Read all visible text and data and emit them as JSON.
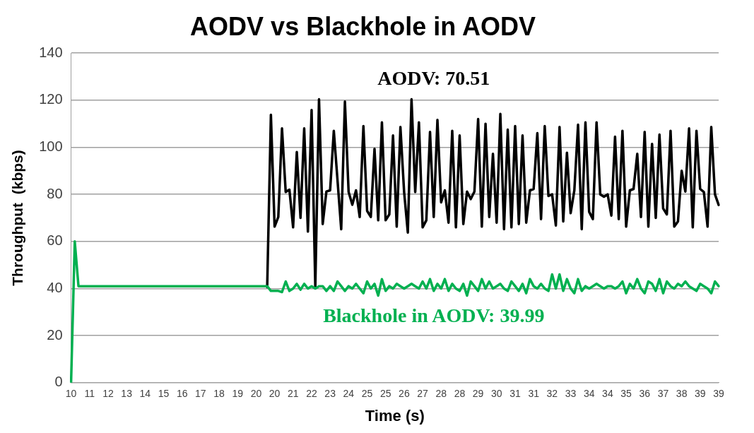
{
  "chart_data": {
    "type": "line",
    "title": "AODV vs Blackhole in AODV",
    "xlabel": "Time (s)",
    "ylabel": "Throughput  (kbps)",
    "categories": [
      "10",
      null,
      null,
      null,
      null,
      "11",
      null,
      null,
      null,
      null,
      "12",
      null,
      null,
      null,
      null,
      "13",
      null,
      null,
      null,
      null,
      "14",
      null,
      null,
      null,
      null,
      "15",
      null,
      null,
      null,
      null,
      "16",
      null,
      null,
      null,
      null,
      "17",
      null,
      null,
      null,
      null,
      "18",
      null,
      null,
      null,
      null,
      "19",
      null,
      null,
      null,
      null,
      "20",
      null,
      null,
      null,
      null,
      "20",
      null,
      null,
      null,
      null,
      "21",
      null,
      null,
      null,
      null,
      "22",
      null,
      null,
      null,
      null,
      "23",
      null,
      null,
      null,
      null,
      "24",
      null,
      null,
      null,
      null,
      "25",
      null,
      null,
      null,
      null,
      "25",
      null,
      null,
      null,
      null,
      "26",
      null,
      null,
      null,
      null,
      "27",
      null,
      null,
      null,
      null,
      "28",
      null,
      null,
      null,
      null,
      "28",
      null,
      null,
      null,
      null,
      "29",
      null,
      null,
      null,
      null,
      "30",
      null,
      null,
      null,
      null,
      "31",
      null,
      null,
      null,
      null,
      "31",
      null,
      null,
      null,
      null,
      "32",
      null,
      null,
      null,
      null,
      "33",
      null,
      null,
      null,
      null,
      "34",
      null,
      null,
      null,
      null,
      "34",
      null,
      null,
      null,
      null,
      "35",
      null,
      null,
      null,
      null,
      "36",
      null,
      null,
      null,
      null,
      "37",
      null,
      null,
      null,
      null,
      "38",
      null,
      null,
      null,
      null,
      "39",
      null,
      null,
      null,
      null,
      "39"
    ],
    "series": [
      {
        "name": "AODV: 70.51",
        "color": "#000000",
        "values": [
          null,
          null,
          null,
          null,
          null,
          null,
          null,
          null,
          null,
          null,
          null,
          null,
          null,
          null,
          null,
          null,
          null,
          null,
          null,
          null,
          null,
          null,
          null,
          null,
          null,
          null,
          null,
          null,
          null,
          null,
          null,
          null,
          null,
          null,
          null,
          null,
          null,
          null,
          null,
          null,
          null,
          null,
          null,
          null,
          null,
          null,
          null,
          null,
          null,
          null,
          null,
          null,
          null,
          40.6,
          113.8,
          66.3,
          70.4,
          108,
          81,
          82,
          66,
          98,
          70,
          108,
          64.2,
          115.8,
          40.6,
          120.4,
          67.4,
          81.2,
          81.7,
          107,
          86,
          65.2,
          119.4,
          81,
          75.6,
          81.7,
          70.4,
          109,
          73,
          70.4,
          99.3,
          69,
          110.6,
          69,
          71.5,
          105,
          66.3,
          108.6,
          81,
          63.8,
          120.4,
          81,
          110.6,
          66,
          69,
          106.5,
          70.4,
          111.6,
          76.6,
          81.7,
          68,
          107,
          66,
          105,
          67.4,
          81.2,
          78,
          81.2,
          112,
          66.3,
          110,
          70.4,
          97.2,
          68,
          114.2,
          65.2,
          107.5,
          66,
          109,
          67.4,
          105,
          68,
          81.7,
          82.3,
          106,
          69.5,
          109,
          79.3,
          80,
          66.8,
          108.6,
          68.5,
          97.7,
          72,
          81.7,
          109.6,
          65.2,
          110.6,
          72.6,
          69.5,
          110.6,
          80,
          79,
          80,
          71,
          104.5,
          69.5,
          107,
          66.3,
          81.7,
          82.3,
          97.2,
          70.4,
          106.5,
          66.3,
          101.4,
          70,
          105.4,
          74,
          71.5,
          107,
          66.3,
          68.5,
          90,
          81.2,
          108,
          66,
          107,
          82.3,
          81,
          66.3,
          108.6,
          80,
          75.5
        ]
      },
      {
        "name": "Blackhole in AODV: 39.99",
        "color": "#00b050",
        "values": [
          0,
          60,
          41,
          41,
          41,
          41,
          41,
          41,
          41,
          41,
          41,
          41,
          41,
          41,
          41,
          41,
          41,
          41,
          41,
          41,
          41,
          41,
          41,
          41,
          41,
          41,
          41,
          41,
          41,
          41,
          41,
          41,
          41,
          41,
          41,
          41,
          41,
          41,
          41,
          41,
          41,
          41,
          41,
          41,
          41,
          41,
          41,
          41,
          41,
          41,
          41,
          41,
          41,
          41,
          39,
          39,
          39,
          38.5,
          43,
          39,
          40,
          42,
          39.5,
          42,
          40,
          41,
          40,
          41,
          41,
          39,
          41,
          39,
          43,
          41,
          39,
          41,
          40,
          42,
          40,
          38,
          43,
          40,
          42,
          37,
          44,
          39,
          41,
          40,
          42,
          41,
          40,
          41,
          42,
          41,
          40,
          43,
          40,
          44,
          39,
          42,
          40,
          44,
          39,
          42,
          40,
          39,
          42,
          37,
          43,
          41,
          39,
          44,
          40,
          43,
          40,
          41,
          42,
          40,
          39,
          43,
          41,
          39,
          42,
          38,
          44,
          41,
          40,
          42,
          40,
          39,
          46,
          40,
          46,
          39,
          44,
          40,
          38,
          44,
          39,
          41,
          40,
          41,
          42,
          41,
          40,
          41,
          41,
          40,
          41,
          43,
          38,
          42,
          40,
          44,
          40,
          38,
          43,
          42,
          39,
          44,
          38,
          43,
          41,
          40,
          42,
          41,
          43,
          41,
          40,
          39,
          42,
          41,
          40,
          38,
          43,
          41
        ]
      }
    ],
    "ylim": [
      0,
      140
    ],
    "yticks": [
      0,
      20,
      40,
      60,
      80,
      100,
      120,
      140
    ],
    "grid": "y",
    "line_style": "solid",
    "marker": "none"
  }
}
